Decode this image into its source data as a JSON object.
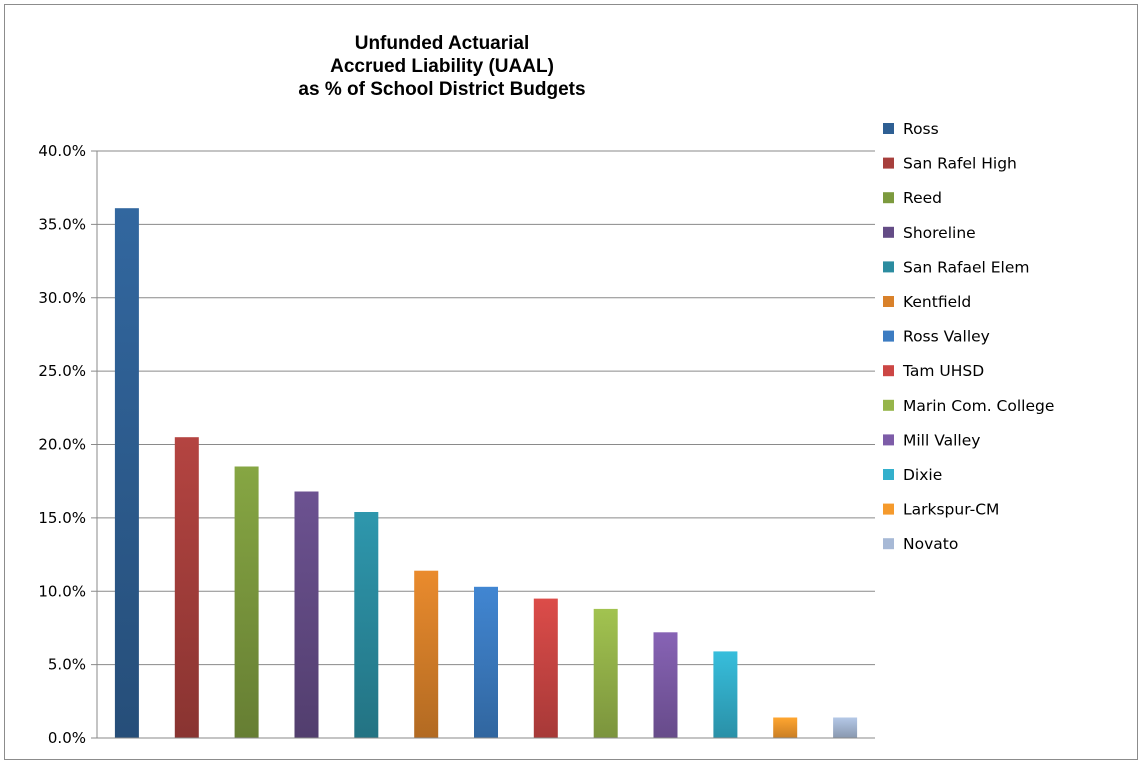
{
  "chart_data": {
    "type": "bar",
    "title_lines": [
      "Unfunded Actuarial",
      "Accrued Liability (UAAL)",
      "as % of School District Budgets"
    ],
    "ylim": [
      0,
      40
    ],
    "ytick_values": [
      0,
      5,
      10,
      15,
      20,
      25,
      30,
      35,
      40
    ],
    "ytick_labels": [
      "0.0%",
      "5.0%",
      "10.0%",
      "15.0%",
      "20.0%",
      "25.0%",
      "30.0%",
      "35.0%",
      "40.0%"
    ],
    "grid": true,
    "legend_position": "right",
    "series": [
      {
        "name": "Ross",
        "value": 36.1,
        "color": "#2e5f93"
      },
      {
        "name": "San Rafel High",
        "value": 20.5,
        "color": "#a73f3c"
      },
      {
        "name": "Reed",
        "value": 18.5,
        "color": "#7c9a3e"
      },
      {
        "name": "Shoreline",
        "value": 16.8,
        "color": "#644c86"
      },
      {
        "name": "San Rafael Elem",
        "value": 15.4,
        "color": "#2b8ca0"
      },
      {
        "name": "Kentfield",
        "value": 11.4,
        "color": "#d9812a"
      },
      {
        "name": "Ross Valley",
        "value": 10.3,
        "color": "#3c7cc2"
      },
      {
        "name": "Tam UHSD",
        "value": 9.5,
        "color": "#cc4644"
      },
      {
        "name": "Marin Com. College",
        "value": 8.8,
        "color": "#96b54a"
      },
      {
        "name": "Mill Valley",
        "value": 7.2,
        "color": "#7d5ca8"
      },
      {
        "name": "Dixie",
        "value": 5.9,
        "color": "#33b0cc"
      },
      {
        "name": "Larkspur-CM",
        "value": 1.4,
        "color": "#f59a2c"
      },
      {
        "name": "Novato",
        "value": 1.4,
        "color": "#a7b9d6"
      }
    ]
  }
}
